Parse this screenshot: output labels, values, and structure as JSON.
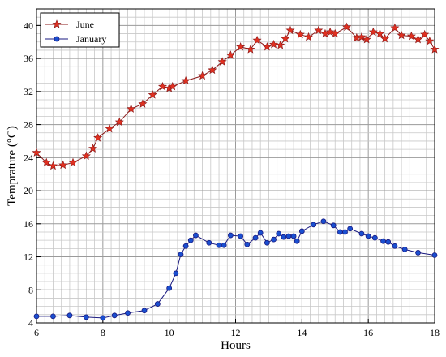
{
  "chart_data": {
    "type": "line",
    "title": "",
    "xlabel": "Hours",
    "ylabel": "Temprature (°C)",
    "xlim": [
      6,
      18
    ],
    "ylim": [
      4,
      42
    ],
    "x_ticks": [
      6,
      8,
      10,
      12,
      14,
      16,
      18
    ],
    "y_ticks": [
      4,
      8,
      12,
      16,
      20,
      24,
      28,
      32,
      36,
      40
    ],
    "grid": true,
    "legend_position": "top-left",
    "series": [
      {
        "name": "June",
        "color": "#8b1a1a",
        "marker": "star",
        "marker_color": "#e03020",
        "points": [
          [
            6.0,
            24.6
          ],
          [
            6.3,
            23.4
          ],
          [
            6.5,
            23.0
          ],
          [
            6.8,
            23.1
          ],
          [
            7.1,
            23.4
          ],
          [
            7.5,
            24.2
          ],
          [
            7.7,
            25.1
          ],
          [
            7.85,
            26.4
          ],
          [
            8.2,
            27.5
          ],
          [
            8.5,
            28.3
          ],
          [
            8.85,
            29.9
          ],
          [
            9.2,
            30.5
          ],
          [
            9.5,
            31.6
          ],
          [
            9.8,
            32.6
          ],
          [
            10.0,
            32.4
          ],
          [
            10.1,
            32.6
          ],
          [
            10.5,
            33.3
          ],
          [
            11.0,
            33.9
          ],
          [
            11.3,
            34.6
          ],
          [
            11.6,
            35.6
          ],
          [
            11.85,
            36.4
          ],
          [
            12.15,
            37.4
          ],
          [
            12.45,
            37.1
          ],
          [
            12.65,
            38.2
          ],
          [
            12.95,
            37.4
          ],
          [
            13.15,
            37.7
          ],
          [
            13.35,
            37.6
          ],
          [
            13.5,
            38.4
          ],
          [
            13.65,
            39.4
          ],
          [
            13.95,
            38.9
          ],
          [
            14.2,
            38.6
          ],
          [
            14.5,
            39.4
          ],
          [
            14.7,
            39.0
          ],
          [
            14.85,
            39.2
          ],
          [
            15.0,
            39.0
          ],
          [
            15.35,
            39.8
          ],
          [
            15.65,
            38.5
          ],
          [
            15.8,
            38.6
          ],
          [
            15.95,
            38.3
          ],
          [
            16.15,
            39.2
          ],
          [
            16.35,
            39.0
          ],
          [
            16.5,
            38.4
          ],
          [
            16.8,
            39.7
          ],
          [
            17.0,
            38.8
          ],
          [
            17.3,
            38.7
          ],
          [
            17.5,
            38.3
          ],
          [
            17.7,
            38.9
          ],
          [
            17.85,
            38.1
          ],
          [
            18.0,
            37.1
          ]
        ]
      },
      {
        "name": "January",
        "color": "#1a1a80",
        "marker": "circle",
        "marker_color": "#1a4fd0",
        "points": [
          [
            6.0,
            4.8
          ],
          [
            6.5,
            4.8
          ],
          [
            7.0,
            4.9
          ],
          [
            7.5,
            4.7
          ],
          [
            8.0,
            4.6
          ],
          [
            8.35,
            4.9
          ],
          [
            8.75,
            5.2
          ],
          [
            9.25,
            5.5
          ],
          [
            9.65,
            6.3
          ],
          [
            10.0,
            8.2
          ],
          [
            10.2,
            10.0
          ],
          [
            10.35,
            12.3
          ],
          [
            10.5,
            13.3
          ],
          [
            10.65,
            14.0
          ],
          [
            10.8,
            14.6
          ],
          [
            11.2,
            13.7
          ],
          [
            11.5,
            13.4
          ],
          [
            11.65,
            13.4
          ],
          [
            11.85,
            14.6
          ],
          [
            12.15,
            14.5
          ],
          [
            12.35,
            13.5
          ],
          [
            12.6,
            14.3
          ],
          [
            12.75,
            14.9
          ],
          [
            12.95,
            13.7
          ],
          [
            13.15,
            14.1
          ],
          [
            13.3,
            14.8
          ],
          [
            13.45,
            14.4
          ],
          [
            13.6,
            14.5
          ],
          [
            13.75,
            14.5
          ],
          [
            13.85,
            13.9
          ],
          [
            14.0,
            15.1
          ],
          [
            14.35,
            15.9
          ],
          [
            14.65,
            16.3
          ],
          [
            14.95,
            15.8
          ],
          [
            15.15,
            15.0
          ],
          [
            15.3,
            15.0
          ],
          [
            15.45,
            15.4
          ],
          [
            15.8,
            14.8
          ],
          [
            16.0,
            14.5
          ],
          [
            16.2,
            14.3
          ],
          [
            16.45,
            13.9
          ],
          [
            16.6,
            13.8
          ],
          [
            16.8,
            13.3
          ],
          [
            17.1,
            12.9
          ],
          [
            17.5,
            12.5
          ],
          [
            18.0,
            12.2
          ]
        ]
      }
    ]
  }
}
